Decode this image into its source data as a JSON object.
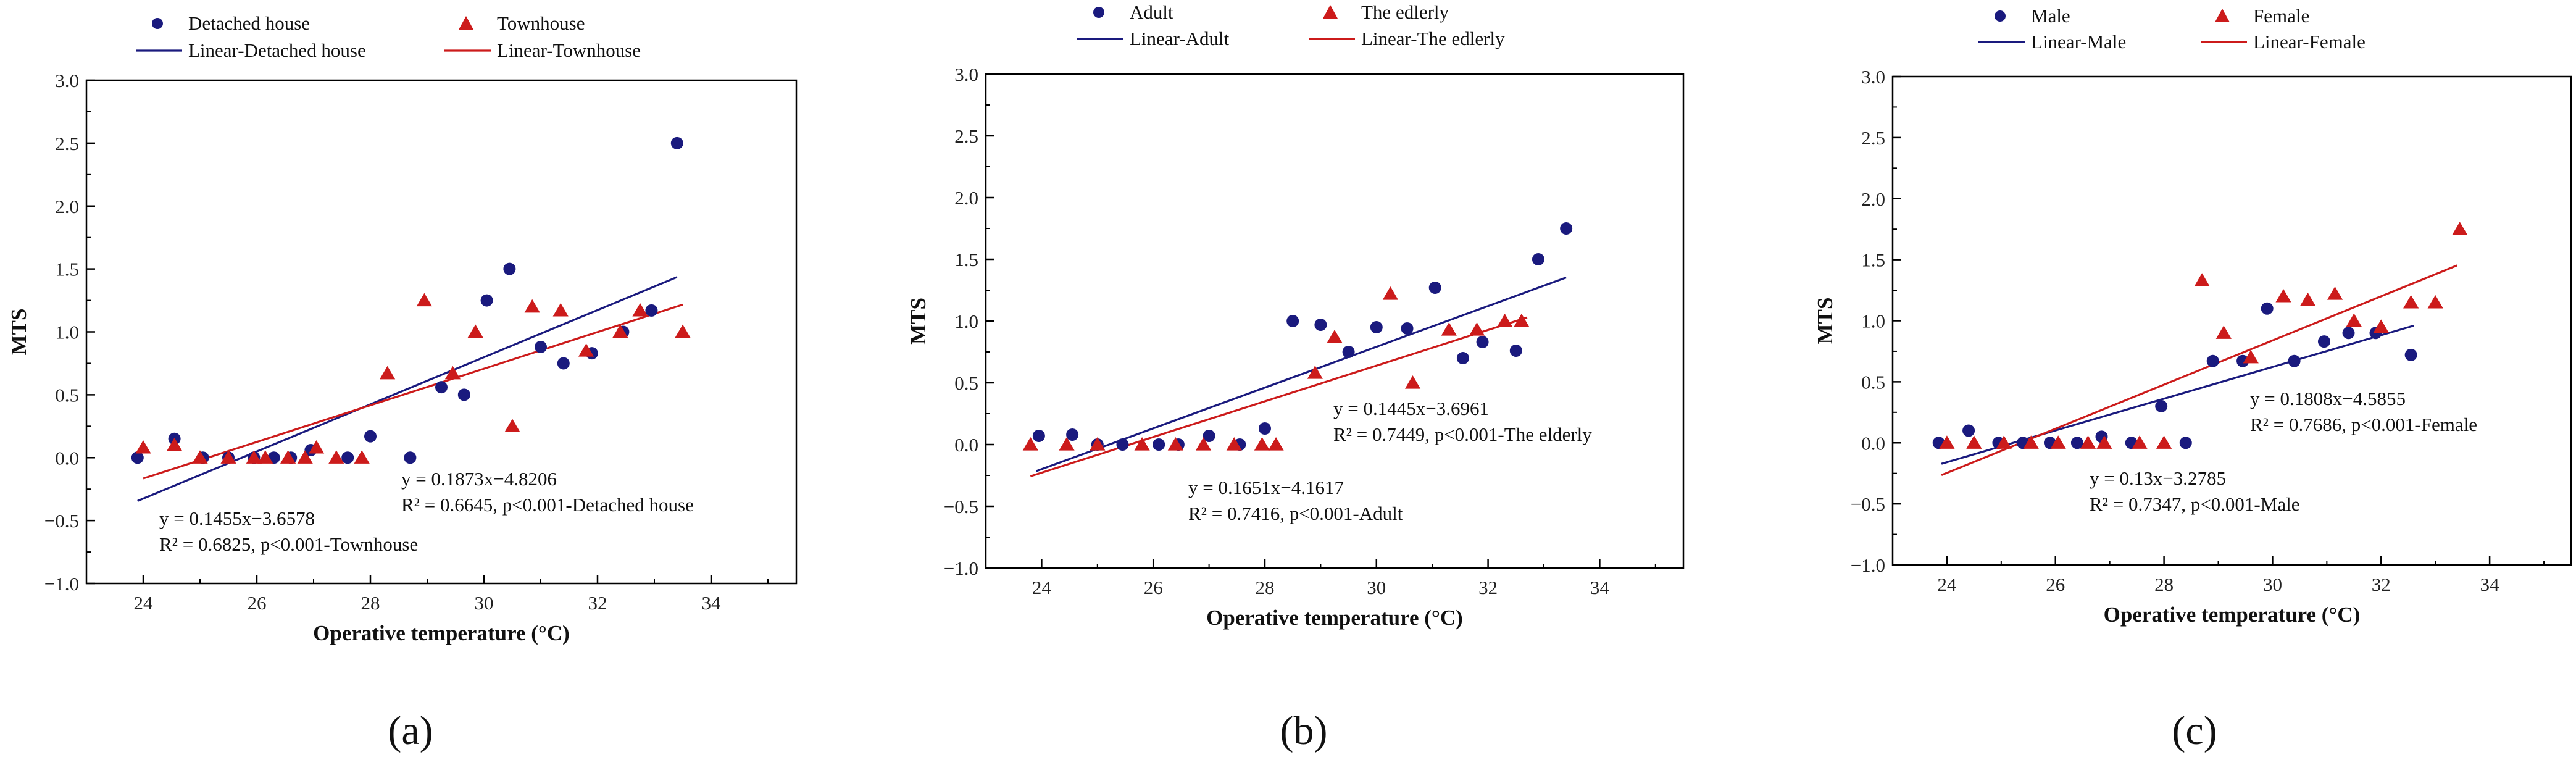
{
  "chart_data": [
    {
      "type": "scatter",
      "panel_label": "(a)",
      "xlabel": "Operative temperature (°C)",
      "ylabel": "MTS",
      "xlim": [
        23,
        35.5
      ],
      "ylim": [
        -1.0,
        3.0
      ],
      "xticks": [
        "24",
        "26",
        "28",
        "30",
        "32",
        "34"
      ],
      "yticks": [
        "−1.0",
        "−0.5",
        "0.0",
        "0.5",
        "1.0",
        "1.5",
        "2.0",
        "2.5",
        "3.0"
      ],
      "series": [
        {
          "name": "Detached house",
          "marker": "circle",
          "color": "#1a1a7e",
          "points": [
            [
              23.9,
              0.0
            ],
            [
              24.55,
              0.15
            ],
            [
              25.05,
              0.0
            ],
            [
              25.5,
              0.0
            ],
            [
              25.95,
              0.0
            ],
            [
              26.3,
              0.0
            ],
            [
              26.6,
              0.0
            ],
            [
              26.95,
              0.06
            ],
            [
              27.6,
              0.0
            ],
            [
              28.0,
              0.17
            ],
            [
              28.7,
              0.0
            ],
            [
              29.25,
              0.56
            ],
            [
              29.65,
              0.5
            ],
            [
              30.05,
              1.25
            ],
            [
              30.45,
              1.5
            ],
            [
              31.0,
              0.88
            ],
            [
              31.4,
              0.75
            ],
            [
              31.9,
              0.83
            ],
            [
              32.45,
              1.0
            ],
            [
              32.95,
              1.17
            ],
            [
              33.4,
              2.5
            ]
          ],
          "fit": {
            "label": "Linear-Detached house",
            "slope": 0.1873,
            "intercept": -4.8206,
            "x_range": [
              23.9,
              33.4
            ]
          }
        },
        {
          "name": "Townhouse",
          "marker": "triangle",
          "color": "#cc1b1b",
          "points": [
            [
              24.0,
              0.08
            ],
            [
              24.55,
              0.1
            ],
            [
              25.0,
              0.0
            ],
            [
              25.5,
              0.0
            ],
            [
              25.95,
              0.0
            ],
            [
              26.15,
              0.0
            ],
            [
              26.55,
              0.0
            ],
            [
              26.85,
              0.0
            ],
            [
              27.05,
              0.08
            ],
            [
              27.4,
              0.0
            ],
            [
              27.85,
              0.0
            ],
            [
              28.3,
              0.67
            ],
            [
              28.95,
              1.25
            ],
            [
              29.45,
              0.67
            ],
            [
              29.85,
              1.0
            ],
            [
              30.5,
              0.25
            ],
            [
              30.85,
              1.2
            ],
            [
              31.35,
              1.17
            ],
            [
              31.8,
              0.85
            ],
            [
              32.4,
              1.0
            ],
            [
              32.75,
              1.17
            ],
            [
              33.5,
              1.0
            ]
          ],
          "fit": {
            "label": "Linear-Townhouse",
            "slope": 0.1455,
            "intercept": -3.6578,
            "x_range": [
              24.0,
              33.5
            ]
          }
        }
      ],
      "annotations": [
        {
          "id": "ann1",
          "lines": [
            "y = 0.1873x−4.8206",
            "R² = 0.6645, p<0.001-Detached house"
          ]
        },
        {
          "id": "ann2",
          "lines": [
            "y = 0.1455x−3.6578",
            "R² = 0.6825, p<0.001-Townhouse"
          ]
        }
      ]
    },
    {
      "type": "scatter",
      "panel_label": "(b)",
      "xlabel": "Operative temperature (°C)",
      "ylabel": "MTS",
      "xlim": [
        23,
        35.5
      ],
      "ylim": [
        -1.0,
        3.0
      ],
      "xticks": [
        "24",
        "26",
        "28",
        "30",
        "32",
        "34"
      ],
      "yticks": [
        "−1.0",
        "−0.5",
        "0.0",
        "0.5",
        "1.0",
        "1.5",
        "2.0",
        "2.5",
        "3.0"
      ],
      "series": [
        {
          "name": "Adult",
          "marker": "circle",
          "color": "#1a1a7e",
          "points": [
            [
              23.95,
              0.07
            ],
            [
              24.55,
              0.08
            ],
            [
              25.0,
              0.0
            ],
            [
              25.45,
              0.0
            ],
            [
              26.1,
              0.0
            ],
            [
              26.45,
              0.0
            ],
            [
              27.0,
              0.07
            ],
            [
              27.55,
              0.0
            ],
            [
              28.0,
              0.13
            ],
            [
              28.5,
              1.0
            ],
            [
              29.0,
              0.97
            ],
            [
              29.5,
              0.75
            ],
            [
              30.0,
              0.95
            ],
            [
              30.55,
              0.94
            ],
            [
              31.05,
              1.27
            ],
            [
              31.55,
              0.7
            ],
            [
              31.9,
              0.83
            ],
            [
              32.5,
              0.76
            ],
            [
              32.9,
              1.5
            ],
            [
              33.4,
              1.75
            ]
          ],
          "fit": {
            "label": "Linear-Adult",
            "slope": 0.1651,
            "intercept": -4.1617,
            "x_range": [
              23.9,
              33.4
            ]
          }
        },
        {
          "name": "The edlerly",
          "marker": "triangle",
          "color": "#cc1b1b",
          "points": [
            [
              23.8,
              0.0
            ],
            [
              24.45,
              0.0
            ],
            [
              25.0,
              0.0
            ],
            [
              25.8,
              0.0
            ],
            [
              26.4,
              0.0
            ],
            [
              26.9,
              0.0
            ],
            [
              27.45,
              0.0
            ],
            [
              27.95,
              0.0
            ],
            [
              28.2,
              0.0
            ],
            [
              28.9,
              0.58
            ],
            [
              29.25,
              0.87
            ],
            [
              30.25,
              1.22
            ],
            [
              30.65,
              0.5
            ],
            [
              31.3,
              0.93
            ],
            [
              31.8,
              0.93
            ],
            [
              32.3,
              1.0
            ],
            [
              32.6,
              1.0
            ]
          ],
          "fit": {
            "label": "Linear-The edlerly",
            "slope": 0.1445,
            "intercept": -3.6961,
            "x_range": [
              23.8,
              32.7
            ]
          }
        }
      ],
      "annotations": [
        {
          "id": "ann1",
          "lines": [
            "y = 0.1445x−3.6961",
            "R² = 0.7449, p<0.001-The elderly"
          ]
        },
        {
          "id": "ann2",
          "lines": [
            "y = 0.1651x−4.1617",
            "R² = 0.7416, p<0.001-Adult"
          ]
        }
      ]
    },
    {
      "type": "scatter",
      "panel_label": "(c)",
      "xlabel": "Operative temperature (°C)",
      "ylabel": "MTS",
      "xlim": [
        23,
        35.5
      ],
      "ylim": [
        -1.0,
        3.0
      ],
      "xticks": [
        "24",
        "26",
        "28",
        "30",
        "32",
        "34"
      ],
      "yticks": [
        "−1.0",
        "−0.5",
        "0.0",
        "0.5",
        "1.0",
        "1.5",
        "2.0",
        "2.5",
        "3.0"
      ],
      "series": [
        {
          "name": "Male",
          "marker": "circle",
          "color": "#1a1a7e",
          "points": [
            [
              23.85,
              0.0
            ],
            [
              24.4,
              0.1
            ],
            [
              24.95,
              0.0
            ],
            [
              25.4,
              0.0
            ],
            [
              25.9,
              0.0
            ],
            [
              26.4,
              0.0
            ],
            [
              26.85,
              0.05
            ],
            [
              27.4,
              0.0
            ],
            [
              27.95,
              0.3
            ],
            [
              28.4,
              0.0
            ],
            [
              28.9,
              0.67
            ],
            [
              29.45,
              0.67
            ],
            [
              29.9,
              1.1
            ],
            [
              30.4,
              0.67
            ],
            [
              30.95,
              0.83
            ],
            [
              31.4,
              0.9
            ],
            [
              31.9,
              0.9
            ],
            [
              32.55,
              0.72
            ]
          ],
          "fit": {
            "label": "Linear-Male",
            "slope": 0.13,
            "intercept": -3.2785,
            "x_range": [
              23.9,
              32.6
            ]
          }
        },
        {
          "name": "Female",
          "marker": "triangle",
          "color": "#cc1b1b",
          "points": [
            [
              24.0,
              0.0
            ],
            [
              24.5,
              0.0
            ],
            [
              25.05,
              0.0
            ],
            [
              25.55,
              0.0
            ],
            [
              26.05,
              0.0
            ],
            [
              26.6,
              0.0
            ],
            [
              26.9,
              0.0
            ],
            [
              27.55,
              0.0
            ],
            [
              28.0,
              0.0
            ],
            [
              28.7,
              1.33
            ],
            [
              29.1,
              0.9
            ],
            [
              29.6,
              0.7
            ],
            [
              30.2,
              1.2
            ],
            [
              30.65,
              1.17
            ],
            [
              31.15,
              1.22
            ],
            [
              31.5,
              1.0
            ],
            [
              32.0,
              0.95
            ],
            [
              32.55,
              1.15
            ],
            [
              33.0,
              1.15
            ],
            [
              33.45,
              1.75
            ]
          ],
          "fit": {
            "label": "Linear-Female",
            "slope": 0.1808,
            "intercept": -4.5855,
            "x_range": [
              23.9,
              33.4
            ]
          }
        }
      ],
      "annotations": [
        {
          "id": "ann1",
          "lines": [
            "y = 0.1808x−4.5855",
            "R² = 0.7686, p<0.001-Female"
          ]
        },
        {
          "id": "ann2",
          "lines": [
            "y = 0.13x−3.2785",
            "R² = 0.7347, p<0.001-Male"
          ]
        }
      ]
    }
  ]
}
